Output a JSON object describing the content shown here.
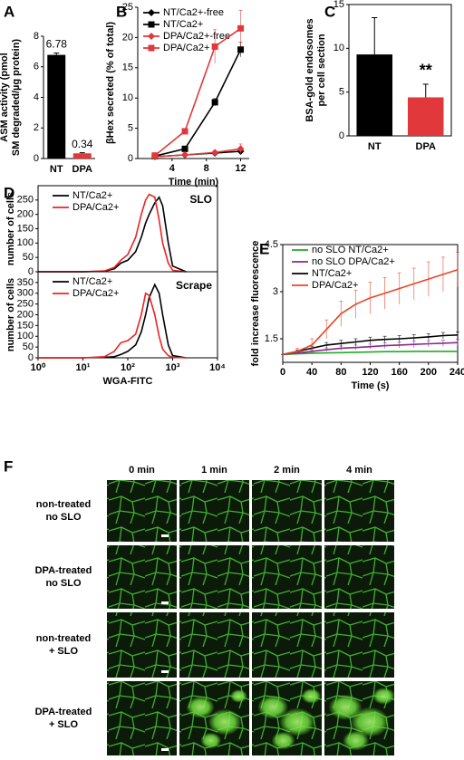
{
  "chart_data": [
    {
      "type": "bar",
      "label": "A",
      "categories": [
        "NT",
        "DPA"
      ],
      "values": [
        6.78,
        0.34
      ],
      "errors": [
        0.12,
        0.04
      ],
      "colors": [
        "#000000",
        "#e0383b"
      ],
      "ylabel": [
        "ASM activity (pmol",
        "SM degraded/µg protein)"
      ],
      "ylim": [
        0,
        8
      ],
      "yticks": [
        0,
        2,
        4,
        6,
        8
      ],
      "show_values": true
    },
    {
      "type": "line",
      "label": "B",
      "x": [
        2,
        5.5,
        9,
        12
      ],
      "xlim": [
        0,
        13
      ],
      "xticks": [
        4,
        8,
        12
      ],
      "ylim": [
        0,
        25
      ],
      "yticks": [
        0,
        5,
        10,
        15,
        20,
        25
      ],
      "xlabel": "Time (min)",
      "ylabel": [
        "βHex secreted (% of total)"
      ],
      "series": [
        {
          "name": "NT/Ca2+-free",
          "color": "#000000",
          "marker": "diamond",
          "values": [
            0.3,
            0.6,
            0.9,
            1.2
          ]
        },
        {
          "name": "NT/Ca2+",
          "color": "#000000",
          "marker": "square",
          "values": [
            0.4,
            1.6,
            9.3,
            18.0
          ],
          "errors": [
            0.1,
            0.3,
            0.6,
            1.2
          ]
        },
        {
          "name": "DPA/Ca2+-free",
          "color": "#e0383b",
          "marker": "diamond",
          "values": [
            0.3,
            0.6,
            1.0,
            1.6
          ],
          "errors": [
            0.1,
            0.2,
            0.3,
            0.8
          ]
        },
        {
          "name": "DPA/Ca2+",
          "color": "#e0383b",
          "marker": "square",
          "values": [
            0.5,
            4.5,
            18.5,
            21.5
          ],
          "errors": [
            0.1,
            0.4,
            2.8,
            3.0
          ]
        }
      ]
    },
    {
      "type": "bar",
      "label": "C",
      "categories": [
        "NT",
        "DPA"
      ],
      "values": [
        9.3,
        4.4
      ],
      "errors": [
        4.2,
        1.5
      ],
      "colors": [
        "#000000",
        "#e0383b"
      ],
      "ylabel": [
        "BSA-gold endosomes",
        "per cell section"
      ],
      "ylim": [
        0,
        15
      ],
      "yticks": [
        0,
        5,
        10,
        15
      ],
      "annotation": "**"
    },
    {
      "type": "line",
      "label": "D",
      "xlog": true,
      "xlim": [
        1,
        10000
      ],
      "ylim": [
        0,
        300
      ],
      "yticks": [
        0,
        50,
        100,
        150,
        200,
        250
      ],
      "ylabel": [
        "number of cells"
      ],
      "annotation": "SLO",
      "x": [
        1,
        10,
        30,
        50,
        70,
        100,
        150,
        200,
        250,
        300,
        400,
        500,
        600,
        800,
        1000,
        2000
      ],
      "series": [
        {
          "name": "NT/Ca2+",
          "color": "#000000",
          "values": [
            0,
            0,
            2,
            10,
            30,
            40,
            70,
            120,
            170,
            200,
            240,
            260,
            230,
            100,
            20,
            0
          ]
        },
        {
          "name": "DPA/Ca2+",
          "color": "#ee2222",
          "values": [
            0,
            0,
            3,
            15,
            40,
            60,
            120,
            200,
            250,
            270,
            260,
            180,
            100,
            30,
            5,
            0
          ]
        }
      ]
    },
    {
      "type": "line",
      "xlog": true,
      "xlim": [
        1,
        10000
      ],
      "xticks": [
        {
          "value": 1,
          "label": "10⁰"
        },
        {
          "value": 10,
          "label": "10¹"
        },
        {
          "value": 100,
          "label": "10²"
        },
        {
          "value": 1000,
          "label": "10³"
        },
        {
          "value": 10000,
          "label": "10⁴"
        }
      ],
      "ylim": [
        0,
        400
      ],
      "yticks": [
        0,
        50,
        100,
        150,
        200,
        250,
        300,
        350
      ],
      "xlabel": "WGA-FITC",
      "ylabel": [
        "number of cells"
      ],
      "annotation": "Scrape",
      "x": [
        1,
        10,
        30,
        50,
        70,
        100,
        150,
        200,
        250,
        300,
        400,
        500,
        600,
        800,
        1000,
        2000
      ],
      "series": [
        {
          "name": "NT/Ca2+",
          "color": "#000000",
          "values": [
            0,
            0,
            2,
            5,
            15,
            30,
            60,
            120,
            200,
            280,
            340,
            300,
            200,
            60,
            10,
            0
          ]
        },
        {
          "name": "DPA/Ca2+",
          "color": "#ee2222",
          "values": [
            0,
            0,
            5,
            30,
            70,
            80,
            110,
            200,
            300,
            290,
            200,
            100,
            40,
            10,
            2,
            0
          ]
        }
      ]
    },
    {
      "type": "line",
      "label": "E",
      "x": [
        0,
        20,
        40,
        60,
        80,
        100,
        120,
        140,
        160,
        180,
        200,
        220,
        240
      ],
      "xlim": [
        0,
        240
      ],
      "xticks": [
        0,
        40,
        80,
        120,
        160,
        200,
        240
      ],
      "ylim": [
        0.75,
        4.5
      ],
      "yticks": [
        1.5,
        3,
        4.5
      ],
      "xlabel": "Time (s)",
      "ylabel": [
        "fold increase fluorescence"
      ],
      "series": [
        {
          "name": "no SLO NT/Ca2+",
          "color": "#22aa22",
          "values": [
            1.0,
            1.02,
            1.04,
            1.05,
            1.06,
            1.07,
            1.08,
            1.09,
            1.09,
            1.1,
            1.1,
            1.1,
            1.1
          ]
        },
        {
          "name": "no SLO DPA/Ca2+",
          "color": "#8a2a8a",
          "values": [
            1.0,
            1.05,
            1.1,
            1.15,
            1.2,
            1.22,
            1.25,
            1.28,
            1.3,
            1.32,
            1.34,
            1.36,
            1.38
          ],
          "errors": [
            0,
            0.03,
            0.05,
            0.06,
            0.07,
            0.08,
            0.08,
            0.09,
            0.09,
            0.1,
            0.1,
            0.1,
            0.1
          ]
        },
        {
          "name": "NT/Ca2+",
          "color": "#000000",
          "values": [
            1.0,
            1.1,
            1.2,
            1.3,
            1.35,
            1.4,
            1.45,
            1.48,
            1.5,
            1.53,
            1.56,
            1.6,
            1.62
          ],
          "errors": [
            0,
            0.04,
            0.06,
            0.08,
            0.1,
            0.1,
            0.1,
            0.1,
            0.1,
            0.1,
            0.1,
            0.1,
            0.1
          ]
        },
        {
          "name": "DPA/Ca2+",
          "color": "#e8452a",
          "values": [
            1.0,
            1.1,
            1.3,
            1.8,
            2.3,
            2.6,
            2.8,
            2.95,
            3.1,
            3.25,
            3.4,
            3.55,
            3.7
          ],
          "errors": [
            0,
            0.1,
            0.2,
            0.3,
            0.4,
            0.45,
            0.5,
            0.5,
            0.5,
            0.5,
            0.55,
            0.55,
            0.55
          ]
        }
      ]
    }
  ],
  "microscopy": {
    "label": "F",
    "columns": [
      "0 min",
      "1 min",
      "2 min",
      "4 min"
    ],
    "rows": [
      [
        "non-treated",
        "no SLO"
      ],
      [
        "DPA-treated",
        "no SLO"
      ],
      [
        "non-treated",
        "+ SLO"
      ],
      [
        "DPA-treated",
        "+ SLO"
      ]
    ]
  }
}
